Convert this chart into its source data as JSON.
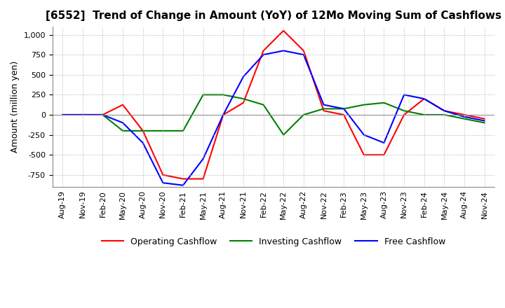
{
  "title": "[6552]  Trend of Change in Amount (YoY) of 12Mo Moving Sum of Cashflows",
  "ylabel": "Amount (million yen)",
  "x_labels": [
    "Aug-19",
    "Nov-19",
    "Feb-20",
    "May-20",
    "Aug-20",
    "Nov-20",
    "Feb-21",
    "May-21",
    "Aug-21",
    "Nov-21",
    "Feb-22",
    "May-22",
    "Aug-22",
    "Nov-22",
    "Feb-23",
    "May-23",
    "Aug-23",
    "Nov-23",
    "Feb-24",
    "May-24",
    "Aug-24",
    "Nov-24"
  ],
  "operating": [
    0,
    0,
    0,
    125,
    -200,
    -750,
    -800,
    -800,
    0,
    150,
    800,
    1050,
    800,
    50,
    0,
    -500,
    -500,
    0,
    200,
    50,
    0,
    -50
  ],
  "investing": [
    0,
    0,
    0,
    -200,
    -200,
    -200,
    -200,
    250,
    250,
    200,
    125,
    -250,
    0,
    75,
    75,
    125,
    150,
    50,
    0,
    0,
    -50,
    -100
  ],
  "free": [
    0,
    0,
    0,
    -100,
    -350,
    -850,
    -880,
    -550,
    0,
    475,
    750,
    800,
    750,
    125,
    75,
    -250,
    -350,
    250,
    200,
    50,
    -25,
    -75
  ],
  "ylim": [
    -900,
    1100
  ],
  "yticks": [
    -750,
    -500,
    -250,
    0,
    250,
    500,
    750,
    1000
  ],
  "colors": {
    "operating": "#ff0000",
    "investing": "#008000",
    "free": "#0000ff"
  },
  "legend_labels": [
    "Operating Cashflow",
    "Investing Cashflow",
    "Free Cashflow"
  ],
  "bg_color": "#ffffff",
  "grid_color": "#b0b0b0",
  "title_fontsize": 11,
  "label_fontsize": 9,
  "tick_fontsize": 8
}
